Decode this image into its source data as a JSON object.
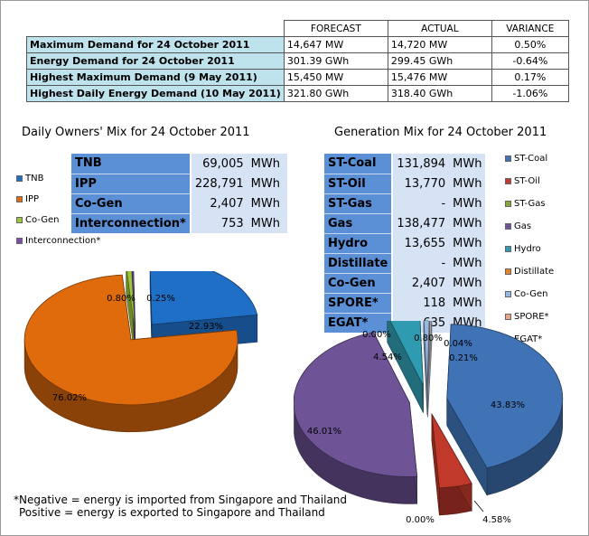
{
  "summary": {
    "headers": [
      "FORECAST",
      "ACTUAL",
      "VARIANCE"
    ],
    "rows": [
      {
        "label": "Maximum Demand for 24 October 2011",
        "forecast": "14,647",
        "forecast_unit": "MW",
        "actual": "14,720",
        "actual_unit": "MW",
        "variance": "0.50%"
      },
      {
        "label": "Energy Demand for 24 October 2011",
        "forecast": "301.39",
        "forecast_unit": "GWh",
        "actual": "299.45",
        "actual_unit": "GWh",
        "variance": "-0.64%"
      },
      {
        "label": "Highest Maximum Demand (9 May 2011)",
        "forecast": "15,450",
        "forecast_unit": "MW",
        "actual": "15,476",
        "actual_unit": "MW",
        "variance": "0.17%"
      },
      {
        "label": "Highest Daily Energy Demand (10 May 2011)",
        "forecast": "321.80",
        "forecast_unit": "GWh",
        "actual": "318.40",
        "actual_unit": "GWh",
        "variance": "-1.06%"
      }
    ]
  },
  "owners_mix": {
    "title": "Daily Owners' Mix for 24 October 2011",
    "table": [
      {
        "name": "TNB",
        "value": "69,005",
        "unit": "MWh"
      },
      {
        "name": "IPP",
        "value": "228,791",
        "unit": "MWh"
      },
      {
        "name": "Co-Gen",
        "value": "2,407",
        "unit": "MWh"
      },
      {
        "name": "Interconnection*",
        "value": "753",
        "unit": "MWh"
      }
    ],
    "legend": [
      "TNB",
      "IPP",
      "Co-Gen",
      "Interconnection*"
    ]
  },
  "generation_mix": {
    "title": "Generation Mix for 24 October 2011",
    "table": [
      {
        "name": "ST-Coal",
        "value": "131,894",
        "unit": "MWh"
      },
      {
        "name": "ST-Oil",
        "value": "13,770",
        "unit": "MWh"
      },
      {
        "name": "ST-Gas",
        "value": "-",
        "unit": "MWh"
      },
      {
        "name": "Gas",
        "value": "138,477",
        "unit": "MWh"
      },
      {
        "name": "Hydro",
        "value": "13,655",
        "unit": "MWh"
      },
      {
        "name": "Distillate",
        "value": "-",
        "unit": "MWh"
      },
      {
        "name": "Co-Gen",
        "value": "2,407",
        "unit": "MWh"
      },
      {
        "name": "SPORE*",
        "value": "118",
        "unit": "MWh"
      },
      {
        "name": "EGAT*",
        "value": "635",
        "unit": "MWh"
      }
    ],
    "legend": [
      "ST-Coal",
      "ST-Oil",
      "ST-Gas",
      "Gas",
      "Hydro",
      "Distillate",
      "Co-Gen",
      "SPORE*",
      "EGAT*"
    ]
  },
  "colors": {
    "tnb": "#1f6fc7",
    "ipp": "#e06b0d",
    "cogen": "#9cc53b",
    "interconnection": "#7b4fa3",
    "st_coal": "#3f73b5",
    "st_oil": "#c0392b",
    "st_gas": "#8aa63a",
    "gas": "#6e5496",
    "hydro": "#2f9bb0",
    "distillate": "#e6822a",
    "gm_cogen": "#97b8e0",
    "spore": "#e8a58a",
    "egat": "#c7cbe0"
  },
  "chart_data": [
    {
      "type": "pie",
      "title": "Daily Owners' Mix for 24 October 2011",
      "categories": [
        "TNB",
        "IPP",
        "Co-Gen",
        "Interconnection*"
      ],
      "values": [
        22.93,
        76.02,
        0.8,
        0.25
      ],
      "labels": [
        "22.93%",
        "76.02%",
        "0.80%",
        "0.25%"
      ],
      "legend_position": "left"
    },
    {
      "type": "pie",
      "title": "Generation Mix for 24 October 2011",
      "categories": [
        "ST-Coal",
        "ST-Oil",
        "ST-Gas",
        "Gas",
        "Hydro",
        "Distillate",
        "Co-Gen",
        "SPORE*",
        "EGAT*"
      ],
      "values": [
        43.83,
        4.58,
        0.0,
        46.01,
        4.54,
        0.0,
        0.8,
        0.04,
        0.21
      ],
      "labels": [
        "43.83%",
        "4.58%",
        "0.00%",
        "46.01%",
        "4.54%",
        "0.00%",
        "0.80%",
        "0.04%",
        "0.21%"
      ],
      "legend_position": "right"
    }
  ],
  "footnote": {
    "line1": "*Negative = energy is imported from Singapore and Thailand",
    "line2": "Positive = energy is exported to Singapore and Thailand"
  }
}
